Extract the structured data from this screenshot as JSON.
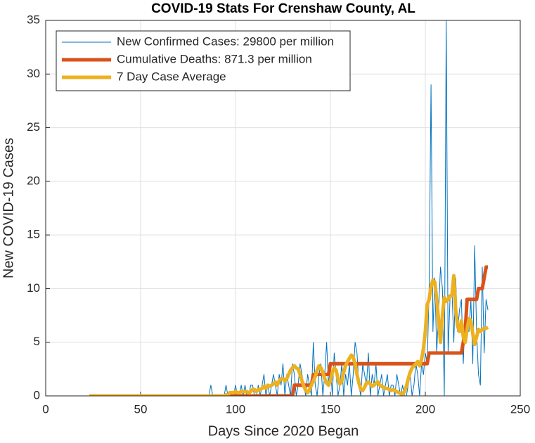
{
  "chart_data": {
    "type": "line",
    "title": "COVID-19 Stats For Crenshaw County, AL",
    "xlabel": "Days Since 2020 Began",
    "ylabel": "New COVID-19 Cases",
    "xlim": [
      0,
      250
    ],
    "xticks": [
      0,
      50,
      100,
      150,
      200,
      250
    ],
    "ylim": [
      0,
      35
    ],
    "yticks": [
      0,
      5,
      10,
      15,
      20,
      25,
      30,
      35
    ],
    "grid": true,
    "legend": "northwest",
    "x": [
      23,
      24,
      25,
      26,
      27,
      28,
      29,
      30,
      31,
      32,
      33,
      34,
      35,
      36,
      37,
      38,
      39,
      40,
      41,
      42,
      43,
      44,
      45,
      46,
      47,
      48,
      49,
      50,
      51,
      52,
      53,
      54,
      55,
      56,
      57,
      58,
      59,
      60,
      61,
      62,
      63,
      64,
      65,
      66,
      67,
      68,
      69,
      70,
      71,
      72,
      73,
      74,
      75,
      76,
      77,
      78,
      79,
      80,
      81,
      82,
      83,
      84,
      85,
      86,
      87,
      88,
      89,
      90,
      91,
      92,
      93,
      94,
      95,
      96,
      97,
      98,
      99,
      100,
      101,
      102,
      103,
      104,
      105,
      106,
      107,
      108,
      109,
      110,
      111,
      112,
      113,
      114,
      115,
      116,
      117,
      118,
      119,
      120,
      121,
      122,
      123,
      124,
      125,
      126,
      127,
      128,
      129,
      130,
      131,
      132,
      133,
      134,
      135,
      136,
      137,
      138,
      139,
      140,
      141,
      142,
      143,
      144,
      145,
      146,
      147,
      148,
      149,
      150,
      151,
      152,
      153,
      154,
      155,
      156,
      157,
      158,
      159,
      160,
      161,
      162,
      163,
      164,
      165,
      166,
      167,
      168,
      169,
      170,
      171,
      172,
      173,
      174,
      175,
      176,
      177,
      178,
      179,
      180,
      181,
      182,
      183,
      184,
      185,
      186,
      187,
      188,
      189,
      190,
      191,
      192,
      193,
      194,
      195,
      196,
      197,
      198,
      199,
      200,
      201,
      202,
      203,
      204,
      205,
      206,
      207,
      208,
      209,
      210,
      211,
      212,
      213,
      214,
      215,
      216,
      217,
      218,
      219,
      220,
      221,
      222,
      223,
      224,
      225,
      226,
      227,
      228,
      229,
      230,
      231,
      232,
      233
    ],
    "series": [
      {
        "name": "New Confirmed Cases: 29800 per million",
        "color": "#0072bd",
        "width": 1,
        "values": [
          0,
          0,
          0,
          0,
          0,
          0,
          0,
          0,
          0,
          0,
          0,
          0,
          0,
          0,
          0,
          0,
          0,
          0,
          0,
          0,
          0,
          0,
          0,
          0,
          0,
          0,
          0,
          0,
          0,
          0,
          0,
          0,
          0,
          0,
          0,
          0,
          0,
          0,
          0,
          0,
          0,
          0,
          0,
          0,
          0,
          0,
          0,
          0,
          0,
          0,
          0,
          0,
          0,
          0,
          0,
          0,
          0,
          0,
          0,
          0,
          0,
          0,
          0,
          0,
          1,
          0,
          0,
          0,
          0,
          0,
          0,
          0,
          1,
          0,
          0,
          0,
          0,
          1,
          0,
          0,
          1,
          0,
          1,
          0,
          0,
          1,
          1,
          0,
          0,
          1,
          0,
          1,
          2,
          0,
          1,
          0,
          1,
          2,
          1,
          0,
          2,
          1,
          3,
          0,
          2,
          1,
          0,
          3,
          2,
          0,
          1,
          3,
          2,
          1,
          0,
          2,
          1,
          0,
          5,
          1,
          0,
          2,
          3,
          0,
          2,
          5,
          1,
          3,
          0,
          4,
          2,
          0,
          1,
          3,
          0,
          2,
          1,
          3,
          0,
          2,
          5,
          4,
          1,
          0,
          3,
          2,
          1,
          4,
          0,
          2,
          1,
          3,
          0,
          1,
          2,
          0,
          1,
          2,
          0,
          1,
          1,
          0,
          2,
          1,
          0,
          1,
          0,
          0,
          1,
          2,
          0,
          1,
          3,
          2,
          0,
          3,
          2,
          4,
          3,
          10,
          29,
          6,
          11,
          4,
          8,
          12,
          10,
          0,
          35,
          4,
          9,
          10,
          5,
          11,
          6,
          8,
          9,
          3,
          8,
          7,
          6,
          9,
          3,
          14,
          6,
          2,
          1,
          12,
          4,
          9,
          8
        ]
      },
      {
        "name": "Cumulative Deaths: 871.3 per million",
        "color": "#d95319",
        "width": 5,
        "values": [
          0,
          0,
          0,
          0,
          0,
          0,
          0,
          0,
          0,
          0,
          0,
          0,
          0,
          0,
          0,
          0,
          0,
          0,
          0,
          0,
          0,
          0,
          0,
          0,
          0,
          0,
          0,
          0,
          0,
          0,
          0,
          0,
          0,
          0,
          0,
          0,
          0,
          0,
          0,
          0,
          0,
          0,
          0,
          0,
          0,
          0,
          0,
          0,
          0,
          0,
          0,
          0,
          0,
          0,
          0,
          0,
          0,
          0,
          0,
          0,
          0,
          0,
          0,
          0,
          0,
          0,
          0,
          0,
          0,
          0,
          0,
          0,
          0,
          0,
          0,
          0,
          0,
          0,
          0,
          0,
          0,
          0,
          0,
          0,
          0,
          0,
          0,
          0,
          0,
          0,
          0,
          0,
          0,
          0,
          0,
          0,
          0,
          0,
          0,
          0,
          0,
          0,
          0,
          0,
          0,
          0,
          0,
          0,
          1,
          1,
          1,
          1,
          1,
          1,
          1,
          1,
          1,
          1,
          2,
          2,
          2,
          2,
          2,
          2,
          2,
          2,
          2,
          3,
          3,
          3,
          3,
          3,
          3,
          3,
          3,
          3,
          3,
          3,
          3,
          3,
          3,
          3,
          3,
          3,
          3,
          3,
          3,
          3,
          3,
          3,
          3,
          3,
          3,
          3,
          3,
          3,
          3,
          3,
          3,
          3,
          3,
          3,
          3,
          3,
          3,
          3,
          3,
          3,
          3,
          3,
          3,
          3,
          3,
          3,
          3,
          3,
          3,
          3,
          3,
          4,
          4,
          4,
          4,
          4,
          4,
          4,
          4,
          4,
          4,
          4,
          4,
          4,
          4,
          4,
          4,
          4,
          4,
          5,
          6,
          9,
          9,
          9,
          9,
          9,
          9,
          10,
          10,
          10,
          11,
          12,
          12
        ]
      },
      {
        "name": "7 Day Case Average",
        "color": "#edb120",
        "width": 5,
        "values": [
          0,
          0,
          0,
          0,
          0,
          0,
          0,
          0,
          0,
          0,
          0,
          0,
          0,
          0,
          0,
          0,
          0,
          0,
          0,
          0,
          0,
          0,
          0,
          0,
          0,
          0,
          0,
          0,
          0,
          0,
          0,
          0,
          0,
          0,
          0,
          0,
          0,
          0,
          0,
          0,
          0,
          0,
          0,
          0,
          0,
          0,
          0,
          0,
          0,
          0,
          0,
          0,
          0,
          0,
          0,
          0,
          0,
          0,
          0,
          0,
          0,
          0,
          0,
          0,
          0,
          0,
          0,
          0,
          0,
          0,
          0,
          0,
          0.1,
          0.1,
          0.3,
          0.3,
          0.3,
          0.4,
          0.3,
          0.3,
          0.4,
          0.4,
          0.4,
          0.4,
          0.3,
          0.4,
          0.6,
          0.6,
          0.4,
          0.6,
          0.6,
          0.7,
          0.9,
          0.7,
          1.0,
          0.9,
          1.0,
          1.1,
          1.3,
          1.0,
          1.4,
          1.6,
          1.6,
          1.4,
          1.6,
          2.0,
          2.4,
          2.6,
          2.8,
          2.6,
          2.5,
          2.0,
          1.4,
          0.9,
          0.5,
          0.3,
          0.6,
          1.0,
          1.4,
          1.8,
          2.4,
          2.8,
          2.6,
          2.2,
          1.6,
          1.2,
          1.0,
          1.4,
          2.2,
          2.6,
          2.4,
          1.6,
          1.1,
          1.4,
          2.2,
          2.8,
          3.2,
          3.5,
          3.8,
          3.6,
          3.0,
          2.0,
          1.2,
          0.6,
          0.5,
          0.8,
          1.2,
          1.3,
          1.1,
          0.9,
          1.0,
          1.2,
          1.3,
          1.0,
          0.9,
          0.8,
          0.7,
          0.7,
          0.6,
          0.5,
          0.6,
          0.5,
          0.4,
          0.3,
          0.2,
          0.2,
          0.4,
          0.9,
          1.6,
          2.2,
          2.6,
          2.8,
          3.0,
          3.2,
          2.8,
          3.4,
          4.4,
          6.0,
          8.5,
          9.0,
          10.2,
          10.8,
          10.6,
          9.0,
          7.0,
          5.0,
          7.5,
          9.2,
          8.8,
          9.0,
          9.3,
          9.4,
          11.2,
          8.0,
          6.5,
          6.0,
          7.0,
          5.5,
          5.0,
          6.2,
          7.2,
          7.0,
          5.8,
          4.8,
          5.5,
          6.2,
          6.0,
          6.2,
          6.3,
          6.3,
          6.4
        ]
      }
    ]
  }
}
